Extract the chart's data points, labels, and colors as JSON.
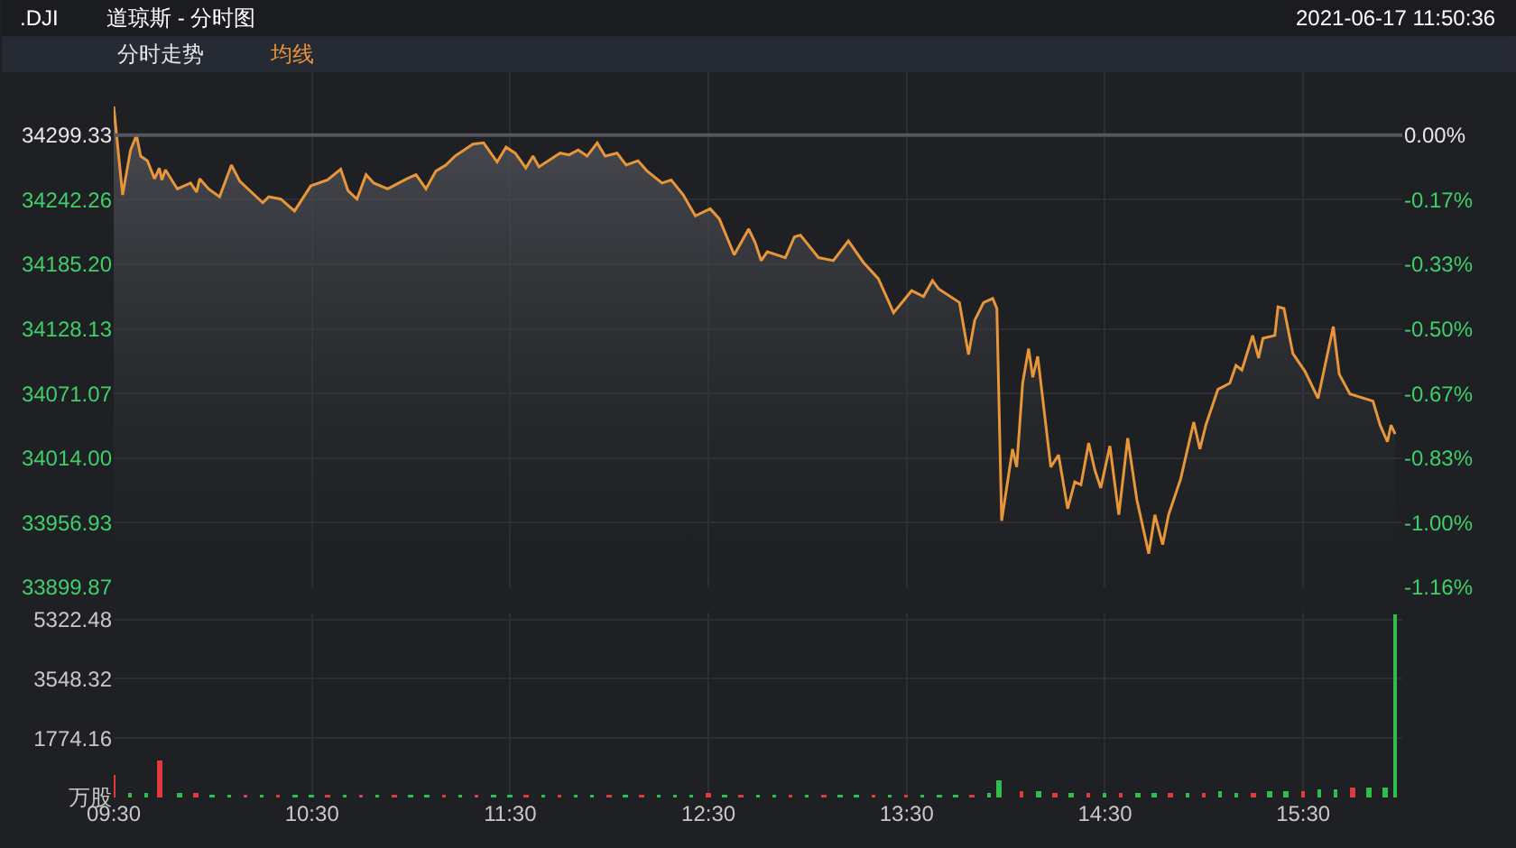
{
  "chart_data": [
    {
      "type": "area",
      "title": ".DJI",
      "subtitle": "道琼斯 - 分时图",
      "annotations": [
        "2021-06-17 11:50:36",
        "分时走势",
        "均线"
      ],
      "x": [
        9.5,
        9.545,
        9.585,
        9.615,
        9.636,
        9.67,
        9.706,
        9.73,
        9.743,
        9.761,
        9.821,
        9.888,
        9.918,
        9.934,
        9.979,
        10.034,
        10.094,
        10.136,
        10.252,
        10.282,
        10.343,
        10.412,
        10.494,
        10.579,
        10.645,
        10.682,
        10.727,
        10.773,
        10.812,
        10.882,
        10.979,
        11.025,
        11.075,
        11.125,
        11.175,
        11.221,
        11.312,
        11.366,
        11.434,
        11.479,
        11.525,
        11.579,
        11.615,
        11.645,
        11.752,
        11.797,
        11.843,
        11.888,
        11.939,
        11.979,
        12.039,
        12.085,
        12.145,
        12.191,
        12.266,
        12.312,
        12.373,
        12.434,
        12.509,
        12.555,
        12.63,
        12.703,
        12.736,
        12.766,
        12.797,
        12.888,
        12.934,
        12.964,
        13.055,
        13.13,
        13.206,
        13.282,
        13.357,
        13.434,
        13.525,
        13.585,
        13.63,
        13.661,
        13.766,
        13.812,
        13.843,
        13.888,
        13.934,
        13.955,
        13.979,
        14.034,
        14.055,
        14.085,
        14.115,
        14.136,
        14.161,
        14.227,
        14.266,
        14.312,
        14.348,
        14.379,
        14.418,
        14.449,
        14.479,
        14.525,
        14.57,
        14.615,
        14.661,
        14.721,
        14.752,
        14.791,
        14.821,
        14.882,
        14.948,
        14.979,
        15.009,
        15.07,
        15.13,
        15.161,
        15.191,
        15.245,
        15.275,
        15.297,
        15.357,
        15.373,
        15.403,
        15.448,
        15.509,
        15.575,
        15.652,
        15.682,
        15.736,
        15.852,
        15.888,
        15.925,
        15.943,
        15.964
      ],
      "series": [
        {
          "color": "#e8963a",
          "values": [
            34324.7,
            34246.5,
            34286.2,
            34299.3,
            34280.8,
            34276.7,
            34260.8,
            34270.3,
            34259.7,
            34268.7,
            34251.8,
            34257.0,
            34249.1,
            34260.8,
            34251.8,
            34244.9,
            34272.9,
            34258.6,
            34239.6,
            34244.9,
            34242.8,
            34232.3,
            34254.5,
            34259.7,
            34269.2,
            34250.2,
            34242.8,
            34264.4,
            34257.0,
            34251.8,
            34260.8,
            34264.4,
            34251.8,
            34267.6,
            34272.9,
            34280.8,
            34291.4,
            34292.5,
            34275.6,
            34288.7,
            34283.5,
            34270.3,
            34280.8,
            34271.3,
            34283.5,
            34281.9,
            34286.2,
            34280.8,
            34292.5,
            34280.8,
            34283.5,
            34272.9,
            34276.7,
            34267.6,
            34257.0,
            34259.7,
            34246.5,
            34228.0,
            34234.3,
            34225.3,
            34193.6,
            34216.4,
            34204.2,
            34188.4,
            34196.3,
            34191.1,
            34209.5,
            34211.0,
            34191.1,
            34188.4,
            34205.8,
            34186.8,
            34172.5,
            34142.4,
            34161.9,
            34156.7,
            34170.9,
            34163.5,
            34151.4,
            34105.4,
            34135.6,
            34151.4,
            34155.0,
            34146.1,
            33958.5,
            34021.9,
            34006.1,
            34080.1,
            34110.7,
            34085.3,
            34103.8,
            34006.1,
            34016.7,
            33969.2,
            33992.9,
            33990.3,
            34027.2,
            34003.4,
            33987.5,
            34024.6,
            33963.8,
            34031.5,
            33977.1,
            33929.5,
            33963.8,
            33937.5,
            33963.8,
            33995.5,
            34045.7,
            34021.9,
            34043.1,
            34074.7,
            34080.1,
            34095.9,
            34091.7,
            34122.3,
            34102.3,
            34119.8,
            34122.3,
            34147.6,
            34146.1,
            34106.4,
            34090.6,
            34066.8,
            34130.2,
            34088.0,
            34070.6,
            34064.3,
            34043.1,
            34028.3,
            34043.1,
            34035.2
          ]
        }
      ],
      "xlim": [
        9.5,
        16.0
      ],
      "xticks": [
        {
          "value": 9.5,
          "label": null
        },
        {
          "value": 10.5,
          "label": null
        },
        {
          "value": 11.5,
          "label": null
        },
        {
          "value": 12.5,
          "label": null
        },
        {
          "value": 13.5,
          "label": null
        },
        {
          "value": 14.5,
          "label": null
        },
        {
          "value": 15.5,
          "label": null
        }
      ],
      "ylim": [
        33899.87,
        34355
      ],
      "yticks": [
        33899.87,
        33956.93,
        {
          "value": 34014,
          "label": "34014.00"
        },
        34071.07,
        34128.13,
        {
          "value": 34185.2,
          "label": "34185.20"
        },
        34242.26,
        34299.33
      ],
      "y2lim": [
        -1.1646,
        0.1623
      ],
      "y2ticks": [
        {
          "value": -1.1646,
          "label": "-1.16%"
        },
        {
          "value": -0.9985,
          "label": "-1.00%"
        },
        {
          "value": -0.832,
          "label": "-0.83%"
        },
        {
          "value": -0.6656,
          "label": "-0.67%"
        },
        {
          "value": -0.4992,
          "label": "-0.50%"
        },
        {
          "value": -0.3328,
          "label": "-0.33%"
        },
        {
          "value": -0.1664,
          "label": "-0.17%"
        },
        {
          "value": 0,
          "label": "0.00%"
        }
      ],
      "ref_lines": [
        {
          "axis": "y",
          "value": 34299.33,
          "color": "#55565e"
        }
      ],
      "grid": true,
      "tick_labels": "y"
    },
    {
      "type": "bar",
      "x": [
        9.5,
        9.583,
        9.667,
        9.733,
        9.833,
        9.917,
        10.0,
        10.083,
        10.167,
        10.25,
        10.333,
        10.417,
        10.5,
        10.583,
        10.667,
        10.75,
        10.833,
        10.917,
        11.0,
        11.083,
        11.167,
        11.25,
        11.333,
        11.417,
        11.5,
        11.583,
        11.667,
        11.75,
        11.833,
        11.917,
        12.0,
        12.083,
        12.167,
        12.25,
        12.333,
        12.417,
        12.5,
        12.583,
        12.667,
        12.75,
        12.833,
        12.917,
        13.0,
        13.083,
        13.167,
        13.25,
        13.333,
        13.417,
        13.5,
        13.583,
        13.667,
        13.75,
        13.833,
        13.917,
        13.967,
        14.083,
        14.167,
        14.25,
        14.333,
        14.417,
        14.5,
        14.583,
        14.667,
        14.75,
        14.833,
        14.917,
        15.0,
        15.083,
        15.167,
        15.25,
        15.333,
        15.417,
        15.5,
        15.583,
        15.667,
        15.75,
        15.833,
        15.917,
        15.967
      ],
      "values": [
        680,
        150,
        120,
        1090,
        130,
        110,
        100,
        90,
        80,
        90,
        70,
        80,
        60,
        70,
        80,
        60,
        70,
        60,
        70,
        60,
        70,
        60,
        50,
        60,
        70,
        60,
        50,
        60,
        50,
        60,
        50,
        60,
        70,
        60,
        50,
        90,
        150,
        50,
        60,
        50,
        60,
        60,
        50,
        60,
        50,
        60,
        50,
        60,
        50,
        60,
        70,
        80,
        100,
        120,
        490,
        200,
        180,
        150,
        160,
        150,
        140,
        150,
        160,
        150,
        140,
        150,
        160,
        170,
        150,
        160,
        180,
        200,
        170,
        220,
        250,
        280,
        300,
        320,
        5450
      ],
      "colors": [
        "#e03a3e",
        "#2ebd4e",
        "#2ebd4e",
        "#e03a3e",
        "#2ebd4e",
        "#e03a3e",
        "#2ebd4e",
        "#2ebd4e",
        "#e03a3e",
        "#2ebd4e",
        "#e03a3e",
        "#2ebd4e",
        "#2ebd4e",
        "#e03a3e",
        "#2ebd4e",
        "#e03a3e",
        "#2ebd4e",
        "#e03a3e",
        "#2ebd4e",
        "#2ebd4e",
        "#e03a3e",
        "#2ebd4e",
        "#e03a3e",
        "#2ebd4e",
        "#2ebd4e",
        "#e03a3e",
        "#2ebd4e",
        "#e03a3e",
        "#2ebd4e",
        "#2ebd4e",
        "#e03a3e",
        "#2ebd4e",
        "#e03a3e",
        "#2ebd4e",
        "#2ebd4e",
        "#2ebd4e",
        "#e03a3e",
        "#2ebd4e",
        "#e03a3e",
        "#2ebd4e",
        "#2ebd4e",
        "#e03a3e",
        "#2ebd4e",
        "#e03a3e",
        "#2ebd4e",
        "#2ebd4e",
        "#e03a3e",
        "#2ebd4e",
        "#e03a3e",
        "#2ebd4e",
        "#2ebd4e",
        "#2ebd4e",
        "#e03a3e",
        "#2ebd4e",
        "#2ebd4e",
        "#e03a3e",
        "#2ebd4e",
        "#e03a3e",
        "#2ebd4e",
        "#e03a3e",
        "#2ebd4e",
        "#e03a3e",
        "#2ebd4e",
        "#2ebd4e",
        "#e03a3e",
        "#2ebd4e",
        "#e03a3e",
        "#2ebd4e",
        "#2ebd4e",
        "#e03a3e",
        "#2ebd4e",
        "#2ebd4e",
        "#e03a3e",
        "#2ebd4e",
        "#2ebd4e",
        "#e03a3e",
        "#2ebd4e",
        "#2ebd4e",
        "#2ebd4e"
      ],
      "xlim": [
        9.5,
        16.0
      ],
      "xticks": [
        {
          "value": 9.5,
          "label": "09:30"
        },
        {
          "value": 10.5,
          "label": "10:30"
        },
        {
          "value": 11.5,
          "label": "11:30"
        },
        {
          "value": 12.5,
          "label": "12:30"
        },
        {
          "value": 13.5,
          "label": "13:30"
        },
        {
          "value": 14.5,
          "label": "14:30"
        },
        {
          "value": 15.5,
          "label": "15:30"
        }
      ],
      "ylim": [
        0,
        5530
      ],
      "yticks": [
        {
          "value": 0,
          "label": "万股"
        },
        1774.16,
        3548.32,
        5322.48
      ],
      "grid": true
    }
  ]
}
